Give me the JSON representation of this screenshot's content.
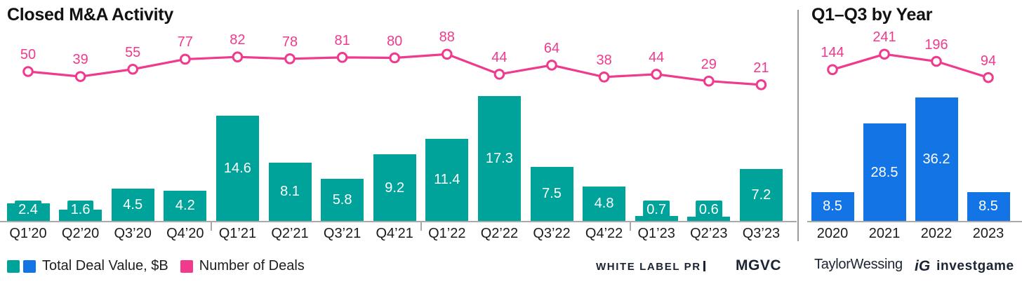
{
  "chart_data": [
    {
      "type": "bar+line",
      "title": "Closed M&A Activity",
      "categories": [
        "Q1’20",
        "Q2’20",
        "Q3’20",
        "Q4’20",
        "Q1’21",
        "Q2’21",
        "Q3’21",
        "Q4’21",
        "Q1’22",
        "Q2’22",
        "Q3’22",
        "Q4’22",
        "Q1’23",
        "Q2’23",
        "Q3’23"
      ],
      "series": [
        {
          "name": "Total Deal Value, $B",
          "type": "bar",
          "color": "#00a39a",
          "values": [
            2.4,
            1.6,
            4.5,
            4.2,
            14.6,
            8.1,
            5.8,
            9.2,
            11.4,
            17.3,
            7.5,
            4.8,
            0.7,
            0.6,
            7.2
          ]
        },
        {
          "name": "Number of Deals",
          "type": "line",
          "color": "#ef3a8d",
          "values": [
            50,
            39,
            55,
            77,
            82,
            78,
            81,
            80,
            88,
            44,
            64,
            38,
            44,
            29,
            21
          ]
        }
      ],
      "legend_position": "bottom-left",
      "grid": false,
      "ylim_bars": [
        0,
        18
      ],
      "notes": "data labels on all bars and line points; year separator ticks on x-axis"
    },
    {
      "type": "bar+line",
      "title": "Q1–Q3 by Year",
      "categories": [
        "2020",
        "2021",
        "2022",
        "2023"
      ],
      "series": [
        {
          "name": "Total Deal Value, $B",
          "type": "bar",
          "color": "#1274e5",
          "values": [
            8.5,
            28.5,
            36.2,
            8.5
          ]
        },
        {
          "name": "Number of Deals",
          "type": "line",
          "color": "#ef3a8d",
          "values": [
            144,
            241,
            196,
            94
          ]
        }
      ],
      "grid": false,
      "ylim_bars": [
        0,
        40
      ],
      "notes": "data labels on all bars and line points"
    }
  ],
  "legend": {
    "items": [
      {
        "label": "Total Deal Value, $B",
        "swatches": [
          "#00a39a",
          "#1274e5"
        ]
      },
      {
        "label": "Number of Deals",
        "swatches": [
          "#ef3a8d"
        ]
      }
    ]
  },
  "footer": {
    "logos": {
      "white_label_pr": "WHITE LABEL PR",
      "mgvc": "MGVC",
      "taylor_wessing": "TaylorWessing",
      "investgame_mark": "iG",
      "investgame": "investgame"
    }
  },
  "colors": {
    "bar_teal": "#00a39a",
    "bar_blue": "#1274e5",
    "line_pink": "#ef3a8d",
    "axis_grey": "#a9a9a9",
    "divider_grey": "#9a9a9a",
    "text_dark": "#121212",
    "logo_navy": "#1b2433"
  }
}
